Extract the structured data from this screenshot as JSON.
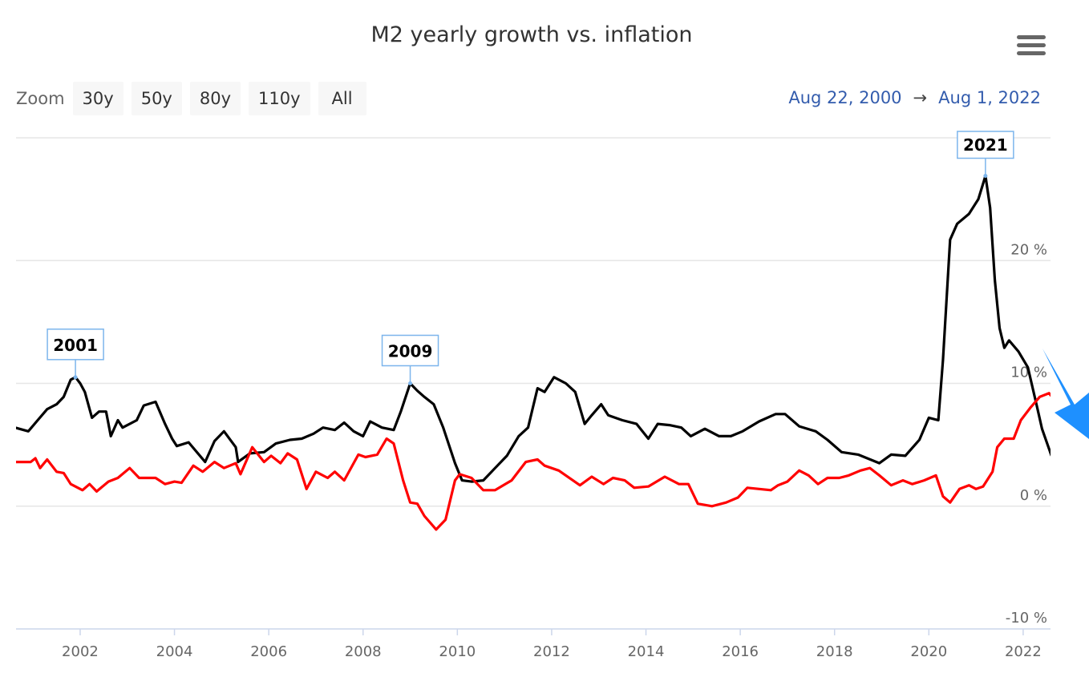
{
  "header": {
    "title": "M2 yearly growth vs. inflation",
    "menu_icon": "hamburger-menu-icon"
  },
  "zoom": {
    "label": "Zoom",
    "buttons": [
      "30y",
      "50y",
      "80y",
      "110y",
      "All"
    ]
  },
  "range": {
    "from": "Aug 22, 2000",
    "arrow": "→",
    "to": "Aug 1, 2022"
  },
  "colors": {
    "m2": "#000000",
    "inflation": "#ff0000",
    "flag_border": "#7cb5ec",
    "overlay_arrow": "#1e90ff"
  },
  "chart_data": {
    "type": "line",
    "title": "M2 yearly growth vs. inflation",
    "xlim": [
      2000.64,
      2022.58
    ],
    "ylim": [
      -10,
      30
    ],
    "grid": true,
    "y_ticks": [
      -10,
      0,
      10,
      20,
      30
    ],
    "y_tick_labels": [
      "-10 %",
      "0 %",
      "10 %",
      "20 %",
      ""
    ],
    "x_ticks": [
      2002,
      2004,
      2006,
      2008,
      2010,
      2012,
      2014,
      2016,
      2018,
      2020,
      2022
    ],
    "x_tick_labels": [
      "2002",
      "2004",
      "2006",
      "2008",
      "2010",
      "2012",
      "2014",
      "2016",
      "2018",
      "2020",
      "2022"
    ],
    "series": [
      {
        "color": "#000000",
        "points": [
          [
            2000.62,
            6.4
          ],
          [
            2000.9,
            6.1
          ],
          [
            2001.1,
            7.0
          ],
          [
            2001.3,
            7.9
          ],
          [
            2001.5,
            8.3
          ],
          [
            2001.65,
            8.9
          ],
          [
            2001.8,
            10.3
          ],
          [
            2001.9,
            10.5
          ],
          [
            2002.0,
            10.0
          ],
          [
            2002.1,
            9.3
          ],
          [
            2002.25,
            7.2
          ],
          [
            2002.4,
            7.7
          ],
          [
            2002.55,
            7.7
          ],
          [
            2002.65,
            5.7
          ],
          [
            2002.8,
            7.0
          ],
          [
            2002.9,
            6.4
          ],
          [
            2003.2,
            7.0
          ],
          [
            2003.35,
            8.2
          ],
          [
            2003.6,
            8.5
          ],
          [
            2003.8,
            6.7
          ],
          [
            2003.95,
            5.5
          ],
          [
            2004.05,
            4.9
          ],
          [
            2004.3,
            5.2
          ],
          [
            2004.65,
            3.6
          ],
          [
            2004.85,
            5.3
          ],
          [
            2005.05,
            6.1
          ],
          [
            2005.3,
            4.8
          ],
          [
            2005.35,
            3.6
          ],
          [
            2005.6,
            4.3
          ],
          [
            2005.9,
            4.4
          ],
          [
            2006.15,
            5.1
          ],
          [
            2006.45,
            5.4
          ],
          [
            2006.7,
            5.5
          ],
          [
            2006.95,
            5.9
          ],
          [
            2007.15,
            6.4
          ],
          [
            2007.4,
            6.2
          ],
          [
            2007.6,
            6.8
          ],
          [
            2007.8,
            6.1
          ],
          [
            2008.0,
            5.7
          ],
          [
            2008.15,
            6.9
          ],
          [
            2008.4,
            6.4
          ],
          [
            2008.65,
            6.2
          ],
          [
            2008.8,
            7.7
          ],
          [
            2009.0,
            10.0
          ],
          [
            2009.15,
            9.4
          ],
          [
            2009.3,
            8.9
          ],
          [
            2009.5,
            8.3
          ],
          [
            2009.7,
            6.4
          ],
          [
            2009.95,
            3.5
          ],
          [
            2010.1,
            2.1
          ],
          [
            2010.3,
            2.0
          ],
          [
            2010.55,
            2.1
          ],
          [
            2010.8,
            3.1
          ],
          [
            2011.05,
            4.1
          ],
          [
            2011.3,
            5.7
          ],
          [
            2011.5,
            6.4
          ],
          [
            2011.7,
            9.6
          ],
          [
            2011.85,
            9.3
          ],
          [
            2012.05,
            10.5
          ],
          [
            2012.3,
            10.0
          ],
          [
            2012.5,
            9.3
          ],
          [
            2012.7,
            6.7
          ],
          [
            2012.85,
            7.4
          ],
          [
            2013.05,
            8.3
          ],
          [
            2013.2,
            7.4
          ],
          [
            2013.5,
            7.0
          ],
          [
            2013.8,
            6.7
          ],
          [
            2014.05,
            5.5
          ],
          [
            2014.25,
            6.7
          ],
          [
            2014.5,
            6.6
          ],
          [
            2014.75,
            6.4
          ],
          [
            2014.95,
            5.7
          ],
          [
            2015.25,
            6.3
          ],
          [
            2015.55,
            5.7
          ],
          [
            2015.8,
            5.7
          ],
          [
            2016.05,
            6.1
          ],
          [
            2016.4,
            6.9
          ],
          [
            2016.75,
            7.5
          ],
          [
            2016.95,
            7.5
          ],
          [
            2017.25,
            6.5
          ],
          [
            2017.6,
            6.1
          ],
          [
            2017.85,
            5.4
          ],
          [
            2018.15,
            4.4
          ],
          [
            2018.5,
            4.2
          ],
          [
            2018.95,
            3.5
          ],
          [
            2019.2,
            4.2
          ],
          [
            2019.5,
            4.1
          ],
          [
            2019.8,
            5.4
          ],
          [
            2020.0,
            7.2
          ],
          [
            2020.2,
            7.0
          ],
          [
            2020.3,
            11.9
          ],
          [
            2020.45,
            21.7
          ],
          [
            2020.6,
            23.0
          ],
          [
            2020.85,
            23.8
          ],
          [
            2021.05,
            25.0
          ],
          [
            2021.2,
            26.9
          ],
          [
            2021.3,
            24.3
          ],
          [
            2021.4,
            18.4
          ],
          [
            2021.5,
            14.5
          ],
          [
            2021.6,
            12.9
          ],
          [
            2021.7,
            13.5
          ],
          [
            2021.9,
            12.6
          ],
          [
            2022.1,
            11.3
          ],
          [
            2022.3,
            8.0
          ],
          [
            2022.4,
            6.3
          ],
          [
            2022.6,
            4.1
          ]
        ]
      },
      {
        "color": "#ff0000",
        "points": [
          [
            2000.62,
            3.6
          ],
          [
            2000.95,
            3.6
          ],
          [
            2001.05,
            3.9
          ],
          [
            2001.15,
            3.1
          ],
          [
            2001.3,
            3.8
          ],
          [
            2001.5,
            2.8
          ],
          [
            2001.65,
            2.7
          ],
          [
            2001.8,
            1.8
          ],
          [
            2002.05,
            1.3
          ],
          [
            2002.2,
            1.8
          ],
          [
            2002.35,
            1.2
          ],
          [
            2002.6,
            2.0
          ],
          [
            2002.8,
            2.3
          ],
          [
            2003.05,
            3.1
          ],
          [
            2003.25,
            2.3
          ],
          [
            2003.6,
            2.3
          ],
          [
            2003.8,
            1.8
          ],
          [
            2004.0,
            2.0
          ],
          [
            2004.15,
            1.9
          ],
          [
            2004.4,
            3.3
          ],
          [
            2004.6,
            2.8
          ],
          [
            2004.85,
            3.6
          ],
          [
            2005.05,
            3.1
          ],
          [
            2005.3,
            3.5
          ],
          [
            2005.4,
            2.6
          ],
          [
            2005.65,
            4.8
          ],
          [
            2005.9,
            3.6
          ],
          [
            2006.05,
            4.1
          ],
          [
            2006.25,
            3.5
          ],
          [
            2006.4,
            4.3
          ],
          [
            2006.6,
            3.8
          ],
          [
            2006.8,
            1.4
          ],
          [
            2007.0,
            2.8
          ],
          [
            2007.25,
            2.3
          ],
          [
            2007.4,
            2.8
          ],
          [
            2007.6,
            2.1
          ],
          [
            2007.9,
            4.2
          ],
          [
            2008.05,
            4.0
          ],
          [
            2008.3,
            4.2
          ],
          [
            2008.5,
            5.5
          ],
          [
            2008.65,
            5.1
          ],
          [
            2008.85,
            2.1
          ],
          [
            2009.0,
            0.3
          ],
          [
            2009.15,
            0.2
          ],
          [
            2009.3,
            -0.8
          ],
          [
            2009.55,
            -1.9
          ],
          [
            2009.75,
            -1.1
          ],
          [
            2009.95,
            2.1
          ],
          [
            2010.05,
            2.6
          ],
          [
            2010.3,
            2.3
          ],
          [
            2010.55,
            1.3
          ],
          [
            2010.8,
            1.3
          ],
          [
            2011.15,
            2.1
          ],
          [
            2011.45,
            3.6
          ],
          [
            2011.7,
            3.8
          ],
          [
            2011.85,
            3.3
          ],
          [
            2012.15,
            2.9
          ],
          [
            2012.45,
            2.1
          ],
          [
            2012.6,
            1.7
          ],
          [
            2012.85,
            2.4
          ],
          [
            2013.1,
            1.8
          ],
          [
            2013.3,
            2.3
          ],
          [
            2013.55,
            2.1
          ],
          [
            2013.75,
            1.5
          ],
          [
            2014.05,
            1.6
          ],
          [
            2014.4,
            2.4
          ],
          [
            2014.7,
            1.8
          ],
          [
            2014.9,
            1.8
          ],
          [
            2015.1,
            0.2
          ],
          [
            2015.4,
            0.0
          ],
          [
            2015.7,
            0.3
          ],
          [
            2015.95,
            0.7
          ],
          [
            2016.15,
            1.5
          ],
          [
            2016.4,
            1.4
          ],
          [
            2016.65,
            1.3
          ],
          [
            2016.8,
            1.7
          ],
          [
            2017.0,
            2.0
          ],
          [
            2017.25,
            2.9
          ],
          [
            2017.45,
            2.5
          ],
          [
            2017.65,
            1.8
          ],
          [
            2017.85,
            2.3
          ],
          [
            2018.1,
            2.3
          ],
          [
            2018.3,
            2.5
          ],
          [
            2018.55,
            2.9
          ],
          [
            2018.75,
            3.1
          ],
          [
            2018.95,
            2.5
          ],
          [
            2019.2,
            1.7
          ],
          [
            2019.45,
            2.1
          ],
          [
            2019.65,
            1.8
          ],
          [
            2019.9,
            2.1
          ],
          [
            2020.15,
            2.5
          ],
          [
            2020.3,
            0.8
          ],
          [
            2020.45,
            0.3
          ],
          [
            2020.65,
            1.4
          ],
          [
            2020.85,
            1.7
          ],
          [
            2021.0,
            1.4
          ],
          [
            2021.15,
            1.6
          ],
          [
            2021.35,
            2.8
          ],
          [
            2021.45,
            4.8
          ],
          [
            2021.6,
            5.5
          ],
          [
            2021.8,
            5.5
          ],
          [
            2021.95,
            7.0
          ],
          [
            2022.15,
            8.0
          ],
          [
            2022.35,
            8.9
          ],
          [
            2022.55,
            9.2
          ],
          [
            2022.7,
            8.5
          ]
        ]
      }
    ],
    "flags": [
      {
        "label": "2001",
        "x": 2001.9,
        "y": 10.5
      },
      {
        "label": "2009",
        "x": 2009.0,
        "y": 10.0
      },
      {
        "label": "2021",
        "x": 2021.2,
        "y": 26.9
      }
    ]
  }
}
